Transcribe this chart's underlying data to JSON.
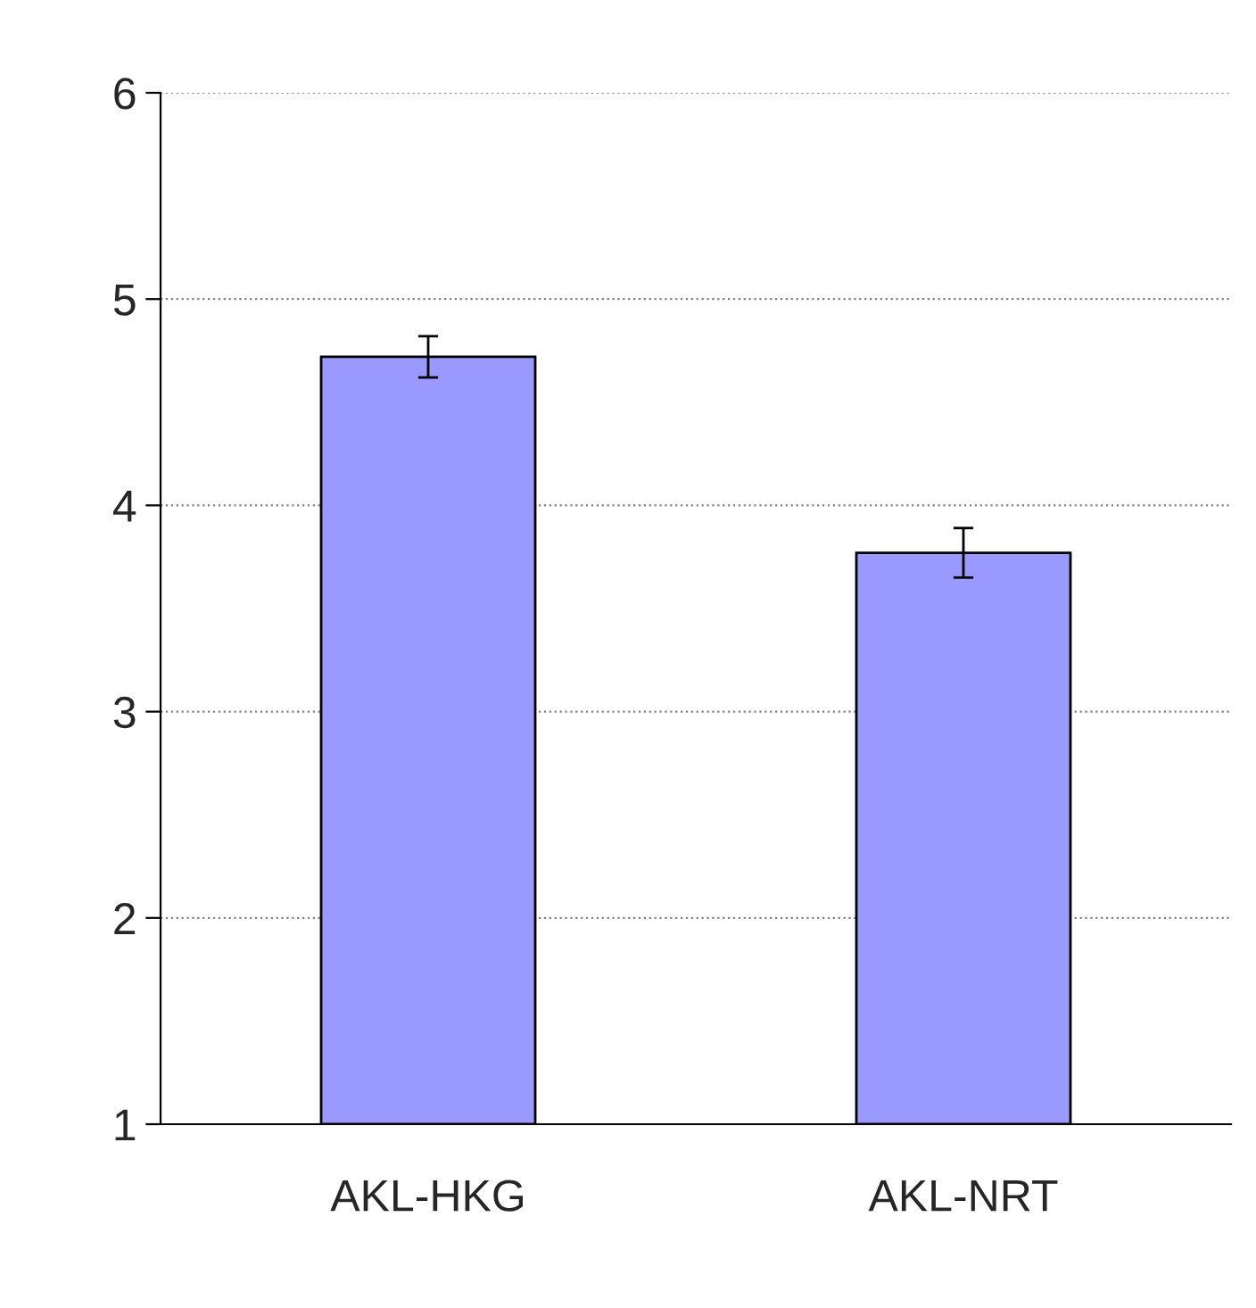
{
  "chart_data": {
    "type": "bar",
    "categories": [
      "AKL-HKG",
      "AKL-NRT"
    ],
    "values": [
      4.72,
      3.77
    ],
    "errors": [
      0.1,
      0.12
    ],
    "color": "#9999ff",
    "ylim": [
      1,
      6
    ],
    "yticks": [
      1,
      2,
      3,
      4,
      5,
      6
    ],
    "grid": "y",
    "legend": false
  }
}
